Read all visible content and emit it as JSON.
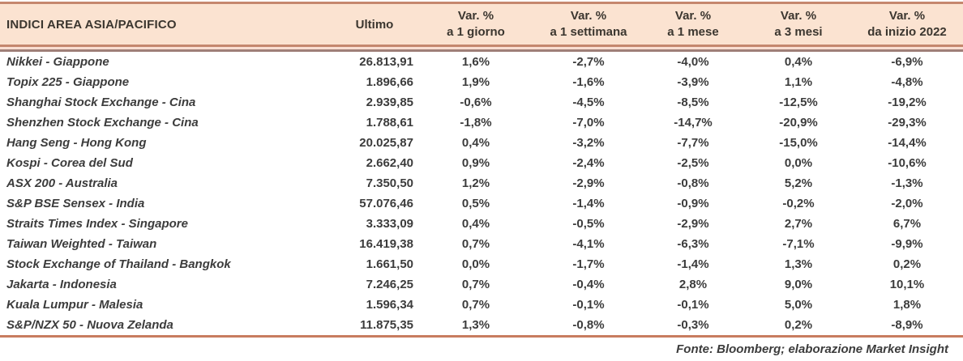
{
  "table": {
    "header": {
      "title": "INDICI AREA ASIA/PACIFICO",
      "ultimo_label": "Ultimo",
      "var_columns": [
        {
          "line1": "Var. %",
          "line2": "a 1 giorno"
        },
        {
          "line1": "Var. %",
          "line2": "a 1 settimana"
        },
        {
          "line1": "Var. %",
          "line2": "a 1 mese"
        },
        {
          "line1": "Var. %",
          "line2": "a 3 mesi"
        },
        {
          "line1": "Var. %",
          "line2": "da inizio 2022"
        }
      ]
    },
    "rows": [
      {
        "name": "Nikkei - Giappone",
        "ultimo": "26.813,91",
        "d1": "1,6%",
        "w1": "-2,7%",
        "m1": "-4,0%",
        "m3": "0,4%",
        "ytd": "-6,9%"
      },
      {
        "name": "Topix 225 - Giappone",
        "ultimo": "1.896,66",
        "d1": "1,9%",
        "w1": "-1,6%",
        "m1": "-3,9%",
        "m3": "1,1%",
        "ytd": "-4,8%"
      },
      {
        "name": "Shanghai Stock Exchange - Cina",
        "ultimo": "2.939,85",
        "d1": "-0,6%",
        "w1": "-4,5%",
        "m1": "-8,5%",
        "m3": "-12,5%",
        "ytd": "-19,2%"
      },
      {
        "name": "Shenzhen Stock Exchange - Cina",
        "ultimo": "1.788,61",
        "d1": "-1,8%",
        "w1": "-7,0%",
        "m1": "-14,7%",
        "m3": "-20,9%",
        "ytd": "-29,3%"
      },
      {
        "name": "Hang Seng - Hong Kong",
        "ultimo": "20.025,87",
        "d1": "0,4%",
        "w1": "-3,2%",
        "m1": "-7,7%",
        "m3": "-15,0%",
        "ytd": "-14,4%"
      },
      {
        "name": "Kospi - Corea del Sud",
        "ultimo": "2.662,40",
        "d1": "0,9%",
        "w1": "-2,4%",
        "m1": "-2,5%",
        "m3": "0,0%",
        "ytd": "-10,6%"
      },
      {
        "name": "ASX 200 - Australia",
        "ultimo": "7.350,50",
        "d1": "1,2%",
        "w1": "-2,9%",
        "m1": "-0,8%",
        "m3": "5,2%",
        "ytd": "-1,3%"
      },
      {
        "name": "S&P BSE Sensex - India",
        "ultimo": "57.076,46",
        "d1": "0,5%",
        "w1": "-1,4%",
        "m1": "-0,9%",
        "m3": "-0,2%",
        "ytd": "-2,0%"
      },
      {
        "name": "Straits Times Index - Singapore",
        "ultimo": "3.333,09",
        "d1": "0,4%",
        "w1": "-0,5%",
        "m1": "-2,9%",
        "m3": "2,7%",
        "ytd": "6,7%"
      },
      {
        "name": "Taiwan Weighted - Taiwan",
        "ultimo": "16.419,38",
        "d1": "0,7%",
        "w1": "-4,1%",
        "m1": "-6,3%",
        "m3": "-7,1%",
        "ytd": "-9,9%"
      },
      {
        "name": "Stock Exchange of Thailand - Bangkok",
        "ultimo": "1.661,50",
        "d1": "0,0%",
        "w1": "-1,7%",
        "m1": "-1,4%",
        "m3": "1,3%",
        "ytd": "0,2%"
      },
      {
        "name": "Jakarta - Indonesia",
        "ultimo": "7.246,25",
        "d1": "0,7%",
        "w1": "-0,4%",
        "m1": "2,8%",
        "m3": "9,0%",
        "ytd": "10,1%"
      },
      {
        "name": "Kuala Lumpur - Malesia",
        "ultimo": "1.596,34",
        "d1": "0,7%",
        "w1": "-0,1%",
        "m1": "-0,1%",
        "m3": "5,0%",
        "ytd": "1,8%"
      },
      {
        "name": "S&P/NZX 50 - Nuova Zelanda",
        "ultimo": "11.875,35",
        "d1": "1,3%",
        "w1": "-0,8%",
        "m1": "-0,3%",
        "m3": "0,2%",
        "ytd": "-8,9%"
      }
    ],
    "footer": "Fonte: Bloomberg; elaborazione Market Insight"
  },
  "colors": {
    "header_background": "#fbe3d1",
    "rule_salmon": "#c5876e",
    "rule_brown": "#9f7f78",
    "rule_bottom": "#c87c5f",
    "text_dark": "#3b362f"
  }
}
